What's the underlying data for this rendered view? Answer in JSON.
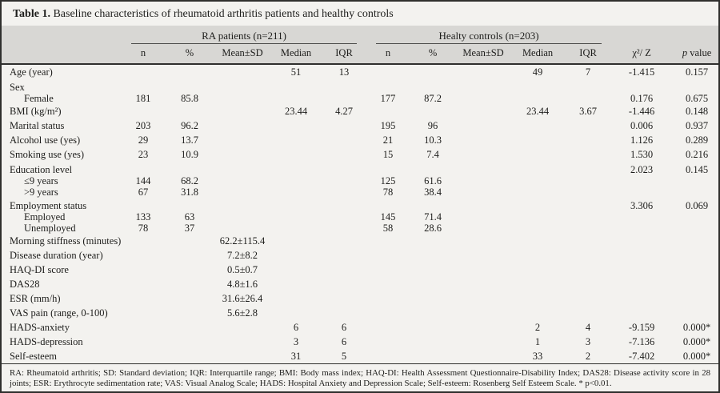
{
  "colors": {
    "background": "#f3f2ef",
    "header_band": "#d8d7d4",
    "border": "#2f2f2d",
    "text": "#1d1d1b"
  },
  "table": {
    "title_label": "Table 1.",
    "title_text": "Baseline characteristics of rheumatoid arthritis patients and healthy controls",
    "groups": [
      {
        "label": "RA patients (n=211)"
      },
      {
        "label": "Healty controls (n=203)"
      }
    ],
    "subheaders": [
      "n",
      "%",
      "Mean±SD",
      "Median",
      "IQR",
      "n",
      "%",
      "Mean±SD",
      "Median",
      "IQR"
    ],
    "stat_headers": {
      "chi_label": "χ²/ Z",
      "p_label_italic": "p",
      "p_label_rest": " value"
    },
    "rows": [
      {
        "label": "Age (year)",
        "style": "normal",
        "indent": false,
        "cells": [
          "",
          "",
          "",
          "51",
          "13",
          "",
          "",
          "",
          "49",
          "7",
          "-1.415",
          "0.157"
        ]
      },
      {
        "label": "Sex",
        "style": "group",
        "indent": false,
        "cells": [
          "",
          "",
          "",
          "",
          "",
          "",
          "",
          "",
          "",
          "",
          "",
          ""
        ]
      },
      {
        "label": "Female",
        "style": "sub",
        "indent": true,
        "cells": [
          "181",
          "85.8",
          "",
          "",
          "",
          "177",
          "87.2",
          "",
          "",
          "",
          "0.176",
          "0.675"
        ]
      },
      {
        "label": "BMI (kg/m²)",
        "style": "normal",
        "indent": false,
        "cells": [
          "",
          "",
          "",
          "23.44",
          "4.27",
          "",
          "",
          "",
          "23.44",
          "3.67",
          "-1.446",
          "0.148"
        ]
      },
      {
        "label": "Marital status",
        "style": "normal",
        "indent": false,
        "cells": [
          "203",
          "96.2",
          "",
          "",
          "",
          "195",
          "96",
          "",
          "",
          "",
          "0.006",
          "0.937"
        ]
      },
      {
        "label": "Alcohol use (yes)",
        "style": "normal",
        "indent": false,
        "cells": [
          "29",
          "13.7",
          "",
          "",
          "",
          "21",
          "10.3",
          "",
          "",
          "",
          "1.126",
          "0.289"
        ]
      },
      {
        "label": "Smoking use (yes)",
        "style": "normal",
        "indent": false,
        "cells": [
          "23",
          "10.9",
          "",
          "",
          "",
          "15",
          "7.4",
          "",
          "",
          "",
          "1.530",
          "0.216"
        ]
      },
      {
        "label": "Education level",
        "style": "group",
        "indent": false,
        "cells": [
          "",
          "",
          "",
          "",
          "",
          "",
          "",
          "",
          "",
          "",
          "2.023",
          "0.145"
        ]
      },
      {
        "label": "≤9 years",
        "style": "sub",
        "indent": true,
        "cells": [
          "144",
          "68.2",
          "",
          "",
          "",
          "125",
          "61.6",
          "",
          "",
          "",
          "",
          ""
        ]
      },
      {
        "label": ">9 years",
        "style": "sub",
        "indent": true,
        "cells": [
          "67",
          "31.8",
          "",
          "",
          "",
          "78",
          "38.4",
          "",
          "",
          "",
          "",
          ""
        ]
      },
      {
        "label": "Employment status",
        "style": "group",
        "indent": false,
        "cells": [
          "",
          "",
          "",
          "",
          "",
          "",
          "",
          "",
          "",
          "",
          "3.306",
          "0.069"
        ]
      },
      {
        "label": "Employed",
        "style": "sub",
        "indent": true,
        "cells": [
          "133",
          "63",
          "",
          "",
          "",
          "145",
          "71.4",
          "",
          "",
          "",
          "",
          ""
        ]
      },
      {
        "label": "Unemployed",
        "style": "sub",
        "indent": true,
        "cells": [
          "78",
          "37",
          "",
          "",
          "",
          "58",
          "28.6",
          "",
          "",
          "",
          "",
          ""
        ]
      },
      {
        "label": "Morning stiffness (minutes)",
        "style": "normal",
        "indent": false,
        "cells": [
          "",
          "",
          "62.2±115.4",
          "",
          "",
          "",
          "",
          "",
          "",
          "",
          "",
          ""
        ]
      },
      {
        "label": "Disease duration (year)",
        "style": "normal",
        "indent": false,
        "cells": [
          "",
          "",
          "7.2±8.2",
          "",
          "",
          "",
          "",
          "",
          "",
          "",
          "",
          ""
        ]
      },
      {
        "label": "HAQ-DI score",
        "style": "normal",
        "indent": false,
        "cells": [
          "",
          "",
          "0.5±0.7",
          "",
          "",
          "",
          "",
          "",
          "",
          "",
          "",
          ""
        ]
      },
      {
        "label": "DAS28",
        "style": "normal",
        "indent": false,
        "cells": [
          "",
          "",
          "4.8±1.6",
          "",
          "",
          "",
          "",
          "",
          "",
          "",
          "",
          ""
        ]
      },
      {
        "label": "ESR (mm/h)",
        "style": "normal",
        "indent": false,
        "cells": [
          "",
          "",
          "31.6±26.4",
          "",
          "",
          "",
          "",
          "",
          "",
          "",
          "",
          ""
        ]
      },
      {
        "label": "VAS pain (range, 0-100)",
        "style": "normal",
        "indent": false,
        "cells": [
          "",
          "",
          "5.6±2.8",
          "",
          "",
          "",
          "",
          "",
          "",
          "",
          "",
          ""
        ]
      },
      {
        "label": "HADS-anxiety",
        "style": "normal",
        "indent": false,
        "cells": [
          "",
          "",
          "",
          "6",
          "6",
          "",
          "",
          "",
          "2",
          "4",
          "-9.159",
          "0.000*"
        ]
      },
      {
        "label": "HADS-depression",
        "style": "normal",
        "indent": false,
        "cells": [
          "",
          "",
          "",
          "3",
          "6",
          "",
          "",
          "",
          "1",
          "3",
          "-7.136",
          "0.000*"
        ]
      },
      {
        "label": "Self-esteem",
        "style": "normal",
        "indent": false,
        "cells": [
          "",
          "",
          "",
          "31",
          "5",
          "",
          "",
          "",
          "33",
          "2",
          "-7.402",
          "0.000*"
        ]
      }
    ],
    "footnote": "RA: Rheumatoid arthritis; SD: Standard deviation; IQR: Interquartile range; BMI: Body mass index; HAQ-DI: Health Assessment Questionnaire-Disability Index; DAS28: Disease activity score in 28 joints; ESR: Erythrocyte sedimentation rate; VAS: Visual Analog Scale; HADS: Hospital Anxiety and Depression Scale; Self-esteem: Rosenberg Self Esteem Scale. * p<0.01."
  }
}
